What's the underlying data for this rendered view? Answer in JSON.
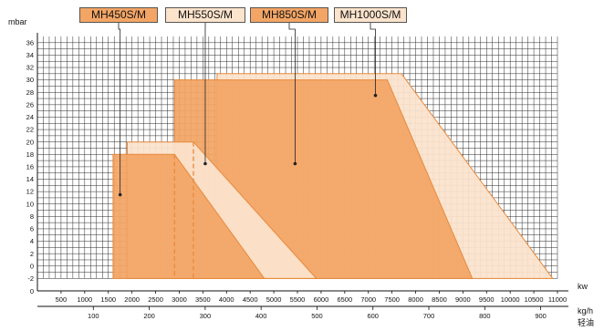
{
  "chart_data": {
    "type": "area",
    "ylabel": "mbar",
    "xlabel": "kw",
    "x2label": "kg/h",
    "x2sublabel": "轻油",
    "xlim": [
      0,
      11000
    ],
    "ylim": [
      -4,
      37
    ],
    "y_ticks": [
      36,
      34,
      32,
      30,
      28,
      26,
      24,
      22,
      20,
      18,
      16,
      14,
      12,
      10,
      8,
      6,
      4,
      2,
      0,
      -2
    ],
    "x_ticks": [
      500,
      1000,
      1500,
      2000,
      2500,
      3000,
      3500,
      4000,
      4500,
      5000,
      5500,
      6000,
      6500,
      7000,
      7500,
      8000,
      8500,
      9000,
      9500,
      10000,
      10500,
      11000
    ],
    "x2_ticks": [
      100,
      200,
      300,
      400,
      500,
      600,
      700,
      800,
      900
    ],
    "grid": true,
    "series": [
      {
        "name": "MH1000S/M",
        "color": "#fbe3cc",
        "points": [
          [
            3800,
            -2
          ],
          [
            3800,
            31
          ],
          [
            7700,
            31
          ],
          [
            10900,
            -2
          ]
        ]
      },
      {
        "name": "MH850S/M",
        "color": "#f3a565",
        "points": [
          [
            2900,
            -2
          ],
          [
            2900,
            30
          ],
          [
            7400,
            30
          ],
          [
            9200,
            -2
          ]
        ]
      },
      {
        "name": "MH550S/M",
        "color": "#fbe3cc",
        "points": [
          [
            1900,
            -2
          ],
          [
            1900,
            20
          ],
          [
            3300,
            20
          ],
          [
            5900,
            -2
          ]
        ]
      },
      {
        "name": "MH450S/M",
        "color": "#f3a565",
        "points": [
          [
            1600,
            -2
          ],
          [
            1600,
            18
          ],
          [
            2900,
            18
          ],
          [
            4800,
            -2
          ]
        ]
      }
    ],
    "legend": [
      {
        "label": "MH450S/M",
        "color": "#f3a565",
        "pointer": [
          1750,
          11.5
        ]
      },
      {
        "label": "MH550S/M",
        "color": "#fbe3cc",
        "pointer": [
          3550,
          16.5
        ]
      },
      {
        "label": "MH850S/M",
        "color": "#f3a565",
        "pointer": [
          5450,
          16.5
        ]
      },
      {
        "label": "MH1000S/M",
        "color": "#fbe3cc",
        "pointer": [
          7150,
          27.5
        ]
      }
    ]
  }
}
